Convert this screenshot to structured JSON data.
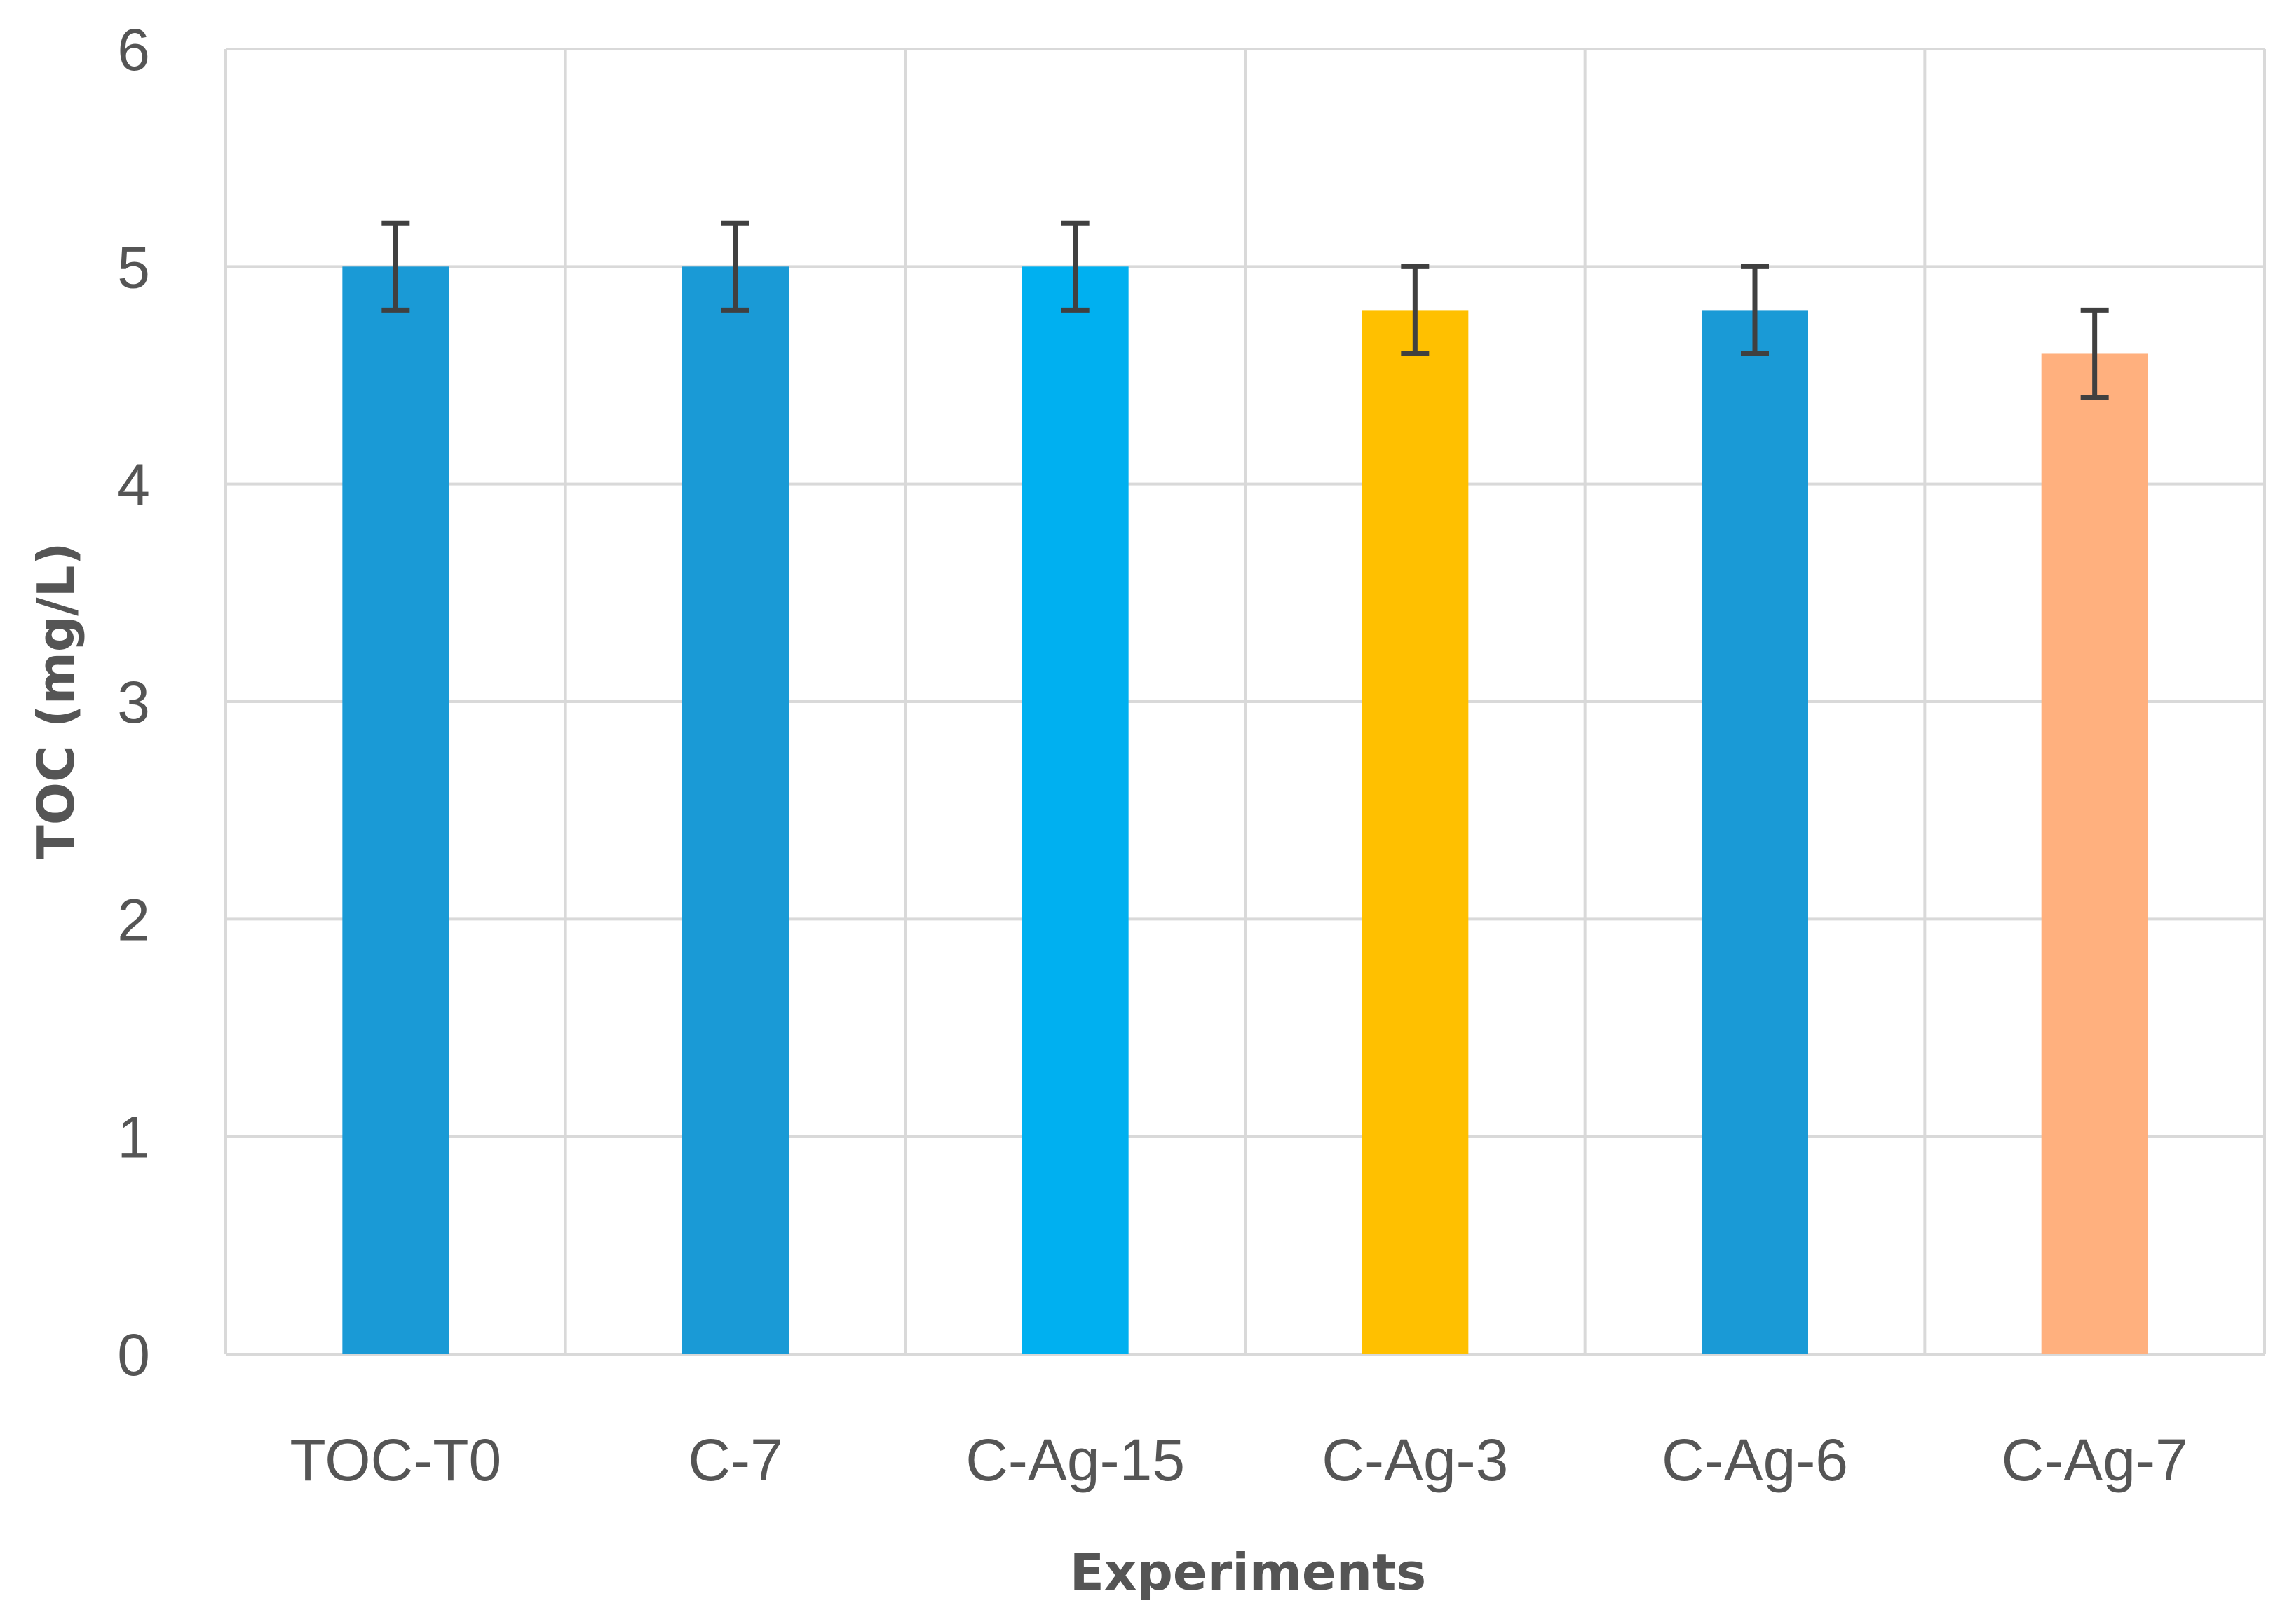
{
  "chart_data": {
    "type": "bar",
    "title": "",
    "xlabel": "Experiments",
    "ylabel": "TOC (mg/L)",
    "ylim": [
      0,
      6
    ],
    "yticks": [
      0,
      1,
      2,
      3,
      4,
      5,
      6
    ],
    "ytick_labels": [
      "0",
      "1",
      "2",
      "3",
      "4",
      "5",
      "6"
    ],
    "grid": true,
    "categories": [
      "TOC-T0",
      "C-7",
      "C-Ag-15",
      "C-Ag-3",
      "C-Ag-6",
      "C-Ag-7"
    ],
    "values": [
      5.0,
      5.0,
      5.0,
      4.8,
      4.8,
      4.6
    ],
    "errors": [
      0.2,
      0.2,
      0.2,
      0.2,
      0.2,
      0.2
    ],
    "colors": [
      "#1a9ad6",
      "#1a9ad6",
      "#00b0f0",
      "#ffc000",
      "#1a9ad6",
      "#ffb07e"
    ]
  }
}
